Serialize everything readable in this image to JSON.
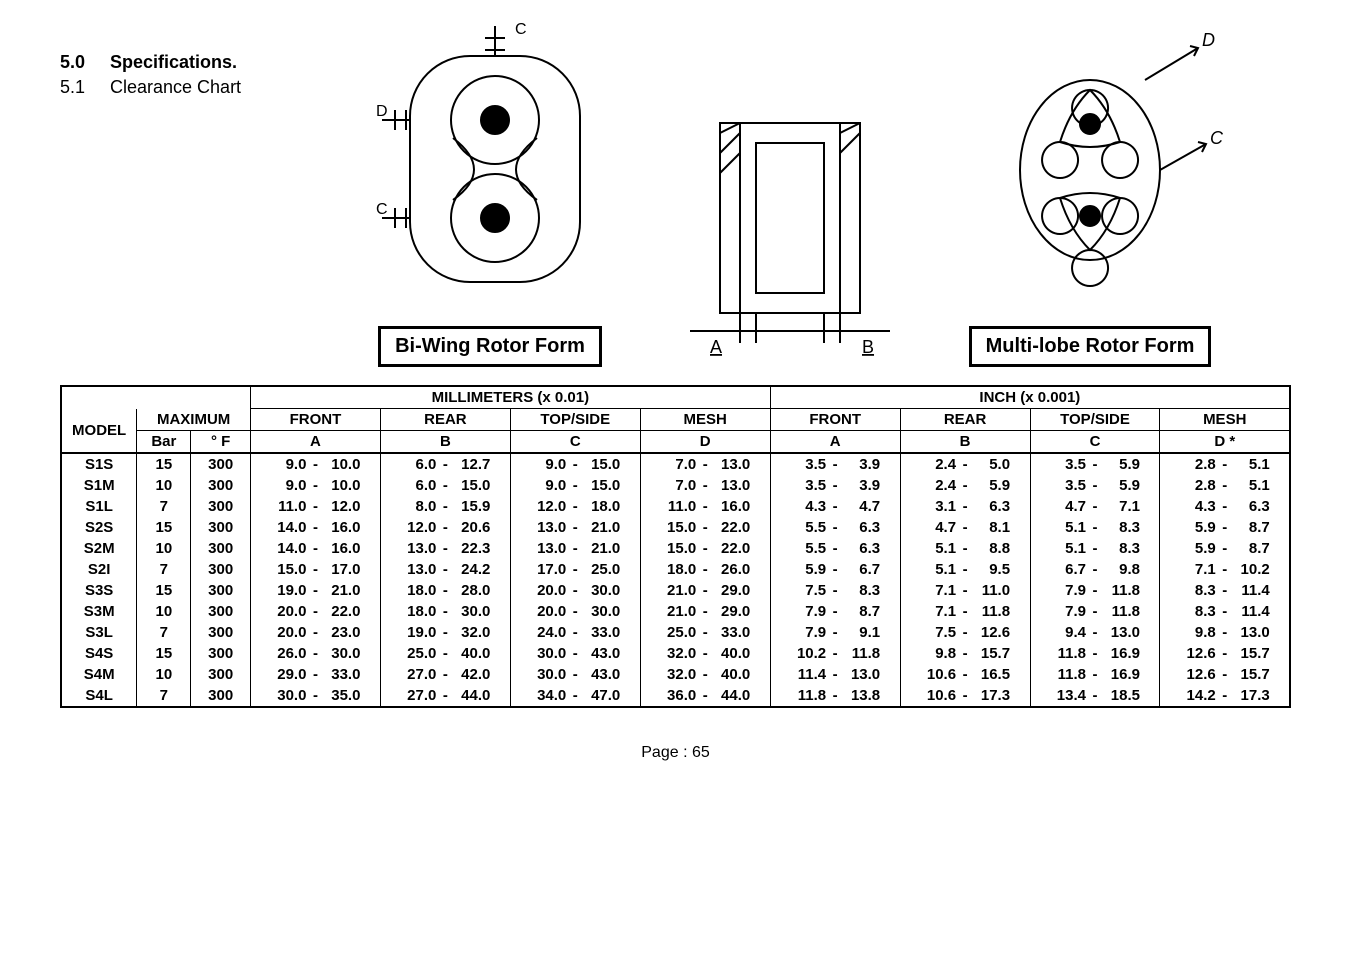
{
  "spec": {
    "num1": "5.0",
    "title1": "Specifications.",
    "num2": "5.1",
    "title2": "Clearance Chart"
  },
  "captions": {
    "bi_wing": "Bi-Wing Rotor Form",
    "multi_lobe": "Multi-lobe Rotor Form"
  },
  "svg_labels": {
    "A": "A",
    "B": "B",
    "C": "C",
    "D": "D"
  },
  "table": {
    "header_mm": "MILLIMETERS (x 0.01)",
    "header_in": "INCH (x 0.001)",
    "model": "MODEL",
    "maximum": "MAXIMUM",
    "front": "FRONT",
    "rear": "REAR",
    "topside": "TOP/SIDE",
    "mesh": "MESH",
    "bar": "Bar",
    "degF": "° F",
    "A": "A",
    "B": "B",
    "C": "C",
    "D": "D",
    "Dstar": "D   *",
    "rows": [
      {
        "model": "S1S",
        "bar": "15",
        "f": "300",
        "mm": [
          [
            "9.0",
            "10.0"
          ],
          [
            "6.0",
            "12.7"
          ],
          [
            "9.0",
            "15.0"
          ],
          [
            "7.0",
            "13.0"
          ]
        ],
        "in": [
          [
            "3.5",
            "3.9"
          ],
          [
            "2.4",
            "5.0"
          ],
          [
            "3.5",
            "5.9"
          ],
          [
            "2.8",
            "5.1"
          ]
        ]
      },
      {
        "model": "S1M",
        "bar": "10",
        "f": "300",
        "mm": [
          [
            "9.0",
            "10.0"
          ],
          [
            "6.0",
            "15.0"
          ],
          [
            "9.0",
            "15.0"
          ],
          [
            "7.0",
            "13.0"
          ]
        ],
        "in": [
          [
            "3.5",
            "3.9"
          ],
          [
            "2.4",
            "5.9"
          ],
          [
            "3.5",
            "5.9"
          ],
          [
            "2.8",
            "5.1"
          ]
        ]
      },
      {
        "model": "S1L",
        "bar": "7",
        "f": "300",
        "mm": [
          [
            "11.0",
            "12.0"
          ],
          [
            "8.0",
            "15.9"
          ],
          [
            "12.0",
            "18.0"
          ],
          [
            "11.0",
            "16.0"
          ]
        ],
        "in": [
          [
            "4.3",
            "4.7"
          ],
          [
            "3.1",
            "6.3"
          ],
          [
            "4.7",
            "7.1"
          ],
          [
            "4.3",
            "6.3"
          ]
        ]
      },
      {
        "model": "S2S",
        "bar": "15",
        "f": "300",
        "mm": [
          [
            "14.0",
            "16.0"
          ],
          [
            "12.0",
            "20.6"
          ],
          [
            "13.0",
            "21.0"
          ],
          [
            "15.0",
            "22.0"
          ]
        ],
        "in": [
          [
            "5.5",
            "6.3"
          ],
          [
            "4.7",
            "8.1"
          ],
          [
            "5.1",
            "8.3"
          ],
          [
            "5.9",
            "8.7"
          ]
        ]
      },
      {
        "model": "S2M",
        "bar": "10",
        "f": "300",
        "mm": [
          [
            "14.0",
            "16.0"
          ],
          [
            "13.0",
            "22.3"
          ],
          [
            "13.0",
            "21.0"
          ],
          [
            "15.0",
            "22.0"
          ]
        ],
        "in": [
          [
            "5.5",
            "6.3"
          ],
          [
            "5.1",
            "8.8"
          ],
          [
            "5.1",
            "8.3"
          ],
          [
            "5.9",
            "8.7"
          ]
        ]
      },
      {
        "model": "S2I",
        "bar": "7",
        "f": "300",
        "mm": [
          [
            "15.0",
            "17.0"
          ],
          [
            "13.0",
            "24.2"
          ],
          [
            "17.0",
            "25.0"
          ],
          [
            "18.0",
            "26.0"
          ]
        ],
        "in": [
          [
            "5.9",
            "6.7"
          ],
          [
            "5.1",
            "9.5"
          ],
          [
            "6.7",
            "9.8"
          ],
          [
            "7.1",
            "10.2"
          ]
        ]
      },
      {
        "model": "S3S",
        "bar": "15",
        "f": "300",
        "mm": [
          [
            "19.0",
            "21.0"
          ],
          [
            "18.0",
            "28.0"
          ],
          [
            "20.0",
            "30.0"
          ],
          [
            "21.0",
            "29.0"
          ]
        ],
        "in": [
          [
            "7.5",
            "8.3"
          ],
          [
            "7.1",
            "11.0"
          ],
          [
            "7.9",
            "11.8"
          ],
          [
            "8.3",
            "11.4"
          ]
        ]
      },
      {
        "model": "S3M",
        "bar": "10",
        "f": "300",
        "mm": [
          [
            "20.0",
            "22.0"
          ],
          [
            "18.0",
            "30.0"
          ],
          [
            "20.0",
            "30.0"
          ],
          [
            "21.0",
            "29.0"
          ]
        ],
        "in": [
          [
            "7.9",
            "8.7"
          ],
          [
            "7.1",
            "11.8"
          ],
          [
            "7.9",
            "11.8"
          ],
          [
            "8.3",
            "11.4"
          ]
        ]
      },
      {
        "model": "S3L",
        "bar": "7",
        "f": "300",
        "mm": [
          [
            "20.0",
            "23.0"
          ],
          [
            "19.0",
            "32.0"
          ],
          [
            "24.0",
            "33.0"
          ],
          [
            "25.0",
            "33.0"
          ]
        ],
        "in": [
          [
            "7.9",
            "9.1"
          ],
          [
            "7.5",
            "12.6"
          ],
          [
            "9.4",
            "13.0"
          ],
          [
            "9.8",
            "13.0"
          ]
        ]
      },
      {
        "model": "S4S",
        "bar": "15",
        "f": "300",
        "mm": [
          [
            "26.0",
            "30.0"
          ],
          [
            "25.0",
            "40.0"
          ],
          [
            "30.0",
            "43.0"
          ],
          [
            "32.0",
            "40.0"
          ]
        ],
        "in": [
          [
            "10.2",
            "11.8"
          ],
          [
            "9.8",
            "15.7"
          ],
          [
            "11.8",
            "16.9"
          ],
          [
            "12.6",
            "15.7"
          ]
        ]
      },
      {
        "model": "S4M",
        "bar": "10",
        "f": "300",
        "mm": [
          [
            "29.0",
            "33.0"
          ],
          [
            "27.0",
            "42.0"
          ],
          [
            "30.0",
            "43.0"
          ],
          [
            "32.0",
            "40.0"
          ]
        ],
        "in": [
          [
            "11.4",
            "13.0"
          ],
          [
            "10.6",
            "16.5"
          ],
          [
            "11.8",
            "16.9"
          ],
          [
            "12.6",
            "15.7"
          ]
        ]
      },
      {
        "model": "S4L",
        "bar": "7",
        "f": "300",
        "mm": [
          [
            "30.0",
            "35.0"
          ],
          [
            "27.0",
            "44.0"
          ],
          [
            "34.0",
            "47.0"
          ],
          [
            "36.0",
            "44.0"
          ]
        ],
        "in": [
          [
            "11.8",
            "13.8"
          ],
          [
            "10.6",
            "17.3"
          ],
          [
            "13.4",
            "18.5"
          ],
          [
            "14.2",
            "17.3"
          ]
        ]
      }
    ]
  },
  "page_num": "Page : 65",
  "style": {
    "stroke": "#000000",
    "thin": 1.5,
    "thick": 2.5,
    "text_color": "#000000",
    "bg": "#ffffff"
  }
}
